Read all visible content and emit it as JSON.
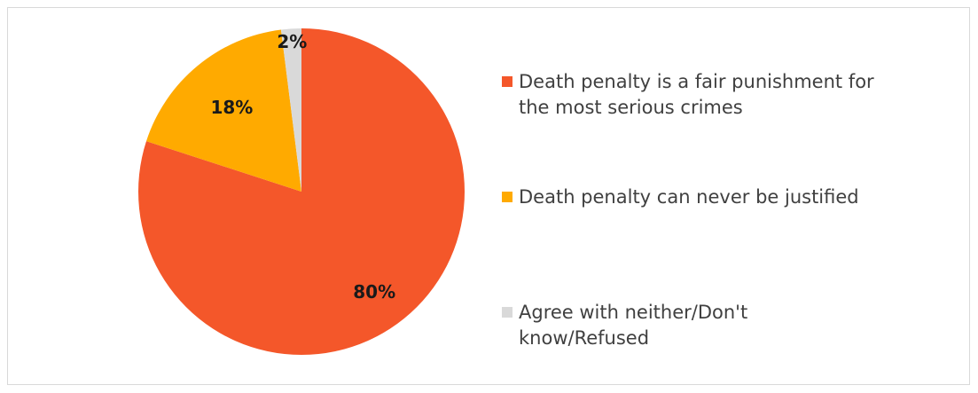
{
  "chart_data": {
    "type": "pie",
    "title": "",
    "categories": [
      "Death penalty is a fair punishment for the most serious crimes",
      "Death penalty can never be justified",
      "Agree with neither/Don't know/Refused"
    ],
    "values": [
      80,
      18,
      2
    ],
    "data_labels": [
      "80%",
      "18%",
      "2%"
    ],
    "colors": [
      "#F4572A",
      "#FFAA00",
      "#D9D9D9"
    ],
    "start_angle_deg": 0,
    "direction": "clockwise",
    "legend": {
      "placement": "right",
      "items": [
        {
          "label": "Death penalty is a fair punishment for the most serious crimes",
          "line1": "Death penalty is a fair punishment for",
          "line2": "the most serious crimes",
          "color": "#F4572A"
        },
        {
          "label": "Death penalty can never be justified",
          "line1": "Death penalty can never be justified",
          "line2": "",
          "color": "#FFAA00"
        },
        {
          "label": "Agree with neither/Don't know/Refused",
          "line1": "Agree with neither/Don't",
          "line2": "know/Refused",
          "color": "#D9D9D9"
        }
      ]
    }
  }
}
